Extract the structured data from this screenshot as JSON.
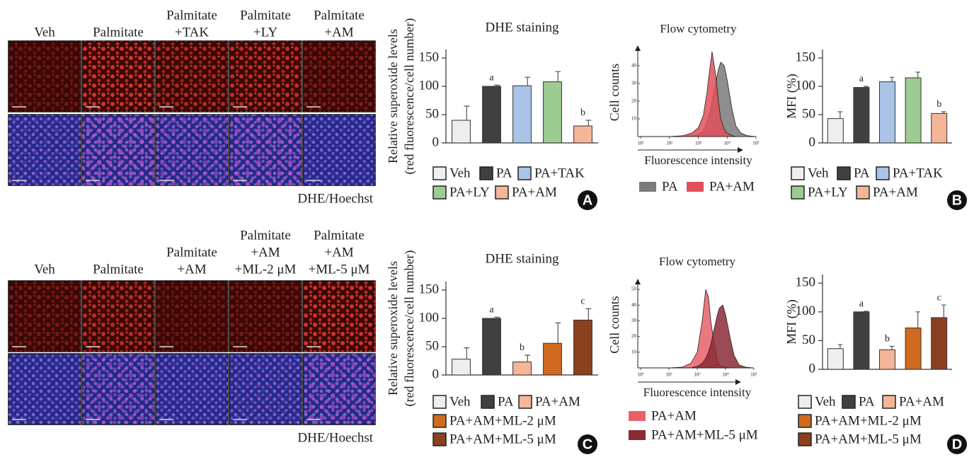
{
  "image_panels": [
    {
      "columns": [
        [
          "Veh"
        ],
        [
          "Palmitate"
        ],
        [
          "Palmitate",
          "+TAK"
        ],
        [
          "Palmitate",
          "+LY"
        ],
        [
          "Palmitate",
          "+AM"
        ]
      ],
      "stain_label": "DHE/Hoechst"
    },
    {
      "columns": [
        [
          "Veh"
        ],
        [
          "Palmitate"
        ],
        [
          "Palmitate",
          "+AM"
        ],
        [
          "Palmitate",
          "+AM",
          "+ML-2 μM"
        ],
        [
          "Palmitate",
          "+AM",
          "+ML-5 μM"
        ]
      ],
      "stain_label": "DHE/Hoechst"
    }
  ],
  "panel_letters": [
    "A",
    "B",
    "C",
    "D"
  ],
  "chart_data": [
    {
      "type": "bar",
      "title": "DHE staining",
      "ylabel": [
        "Relative superoxide levels",
        "(red fluorescence/cell number)"
      ],
      "categories": [
        "Veh",
        "PA",
        "PA+TAK",
        "PA+LY",
        "PA+AM"
      ],
      "values": [
        40,
        100,
        101,
        108,
        30
      ],
      "errors": [
        25,
        2,
        15,
        18,
        10
      ],
      "letters": [
        null,
        "a",
        null,
        null,
        "b"
      ],
      "colors": [
        "#eeeeee",
        "#404040",
        "#a9c4e8",
        "#9ccc8f",
        "#f4b599"
      ],
      "ylim": [
        0,
        165
      ],
      "yticks": [
        0,
        50,
        100,
        150
      ]
    },
    {
      "type": "area",
      "title": "Flow cytometry",
      "xlabel": "Fluorescence intensity",
      "ylabel": "Cell counts",
      "xscale": "log",
      "x": [
        100,
        300,
        600,
        1000,
        1500,
        2000,
        2500,
        3000,
        4000,
        5000,
        6000,
        8000,
        10000,
        15000,
        20000,
        30000,
        50000,
        100000
      ],
      "series": [
        {
          "name": "PA",
          "color": "#7a7a7a",
          "values": [
            0,
            0,
            0.5,
            1,
            3,
            8,
            14,
            20,
            30,
            38,
            42,
            40,
            32,
            15,
            6,
            2,
            0.5,
            0
          ]
        },
        {
          "name": "PA+AM",
          "color": "#e0505a",
          "values": [
            0,
            0.5,
            2,
            5,
            12,
            25,
            38,
            48,
            35,
            20,
            10,
            4,
            2,
            0.5,
            0,
            0,
            0,
            0
          ]
        }
      ],
      "xlim": [
        10,
        100000
      ],
      "xticks": [
        {
          "value": 10,
          "label": "10¹"
        },
        {
          "value": 100,
          "label": "10²"
        },
        {
          "value": 1000,
          "label": "10³"
        },
        {
          "value": 10000,
          "label": "10⁴"
        },
        {
          "value": 100000,
          "label": "10⁵"
        }
      ],
      "ylim": [
        0,
        50
      ],
      "yticks": [
        10,
        20,
        30,
        40
      ]
    },
    {
      "type": "bar",
      "ylabel": "MFI (%)",
      "categories": [
        "Veh",
        "PA",
        "PA+TAK",
        "PA+LY",
        "PA+AM"
      ],
      "values": [
        43,
        98,
        108,
        115,
        52
      ],
      "errors": [
        12,
        2,
        8,
        10,
        3
      ],
      "letters": [
        null,
        "a",
        null,
        null,
        "b"
      ],
      "colors": [
        "#eeeeee",
        "#404040",
        "#a9c4e8",
        "#9ccc8f",
        "#f4b599"
      ],
      "ylim": [
        0,
        165
      ],
      "yticks": [
        0,
        50,
        100,
        150
      ]
    },
    {
      "type": "bar",
      "title": "DHE staining",
      "ylabel": [
        "Relative superoxide levels",
        "(red fluorescence/cell number)"
      ],
      "categories": [
        "Veh",
        "PA",
        "PA+AM",
        "PA+AM+ML-2 μM",
        "PA+AM+ML-5 μM"
      ],
      "values": [
        28,
        100,
        23,
        56,
        97
      ],
      "errors": [
        20,
        2,
        12,
        36,
        20
      ],
      "letters": [
        null,
        "a",
        "b",
        null,
        "c"
      ],
      "colors": [
        "#eeeeee",
        "#404040",
        "#f4b599",
        "#d06a20",
        "#8b4020"
      ],
      "ylim": [
        0,
        165
      ],
      "yticks": [
        0,
        50,
        100,
        150
      ]
    },
    {
      "type": "area",
      "title": "Flow cytometry",
      "xlabel": "Fluorescence intensity",
      "ylabel": "Cell counts",
      "xscale": "log",
      "x": [
        100,
        300,
        600,
        1000,
        1500,
        2000,
        2500,
        3000,
        4000,
        5000,
        6000,
        8000,
        10000,
        15000,
        20000,
        30000,
        50000,
        100000
      ],
      "series": [
        {
          "name": "PA+AM",
          "color": "#e8606a",
          "values": [
            0,
            0.5,
            3,
            10,
            30,
            50,
            45,
            30,
            15,
            6,
            2,
            1,
            0.5,
            0,
            0,
            0,
            0,
            0
          ]
        },
        {
          "name": "PA+AM+ML-5 μM",
          "color": "#8b2a35",
          "values": [
            0,
            0,
            0,
            1,
            3,
            6,
            10,
            15,
            25,
            33,
            38,
            40,
            34,
            18,
            8,
            2,
            0.5,
            0
          ]
        }
      ],
      "xlim": [
        10,
        100000
      ],
      "xticks": [
        {
          "value": 10,
          "label": "10¹"
        },
        {
          "value": 100,
          "label": "10²"
        },
        {
          "value": 1000,
          "label": "10³"
        },
        {
          "value": 10000,
          "label": "10⁴"
        },
        {
          "value": 100000,
          "label": "10⁵"
        }
      ],
      "ylim": [
        0,
        55
      ],
      "yticks": [
        10,
        20,
        30,
        40,
        50
      ]
    },
    {
      "type": "bar",
      "ylabel": "MFI (%)",
      "categories": [
        "Veh",
        "PA",
        "PA+AM",
        "PA+AM+ML-2 μM",
        "PA+AM+ML-5 μM"
      ],
      "values": [
        36,
        100,
        34,
        72,
        90
      ],
      "errors": [
        7,
        1,
        6,
        28,
        22
      ],
      "letters": [
        null,
        "a",
        "b",
        null,
        "c"
      ],
      "colors": [
        "#eeeeee",
        "#404040",
        "#f4b599",
        "#d06a20",
        "#8b4020"
      ],
      "ylim": [
        0,
        165
      ],
      "yticks": [
        0,
        50,
        100,
        150
      ]
    }
  ]
}
